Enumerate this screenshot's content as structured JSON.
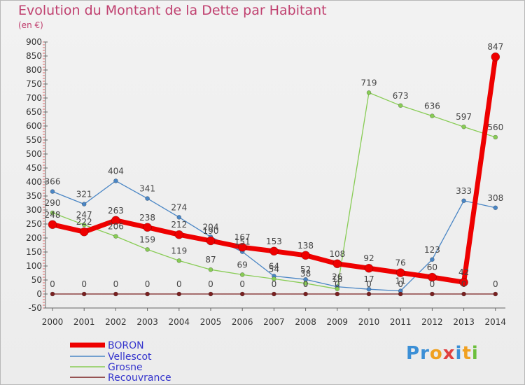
{
  "title": "Evolution du Montant de la Dette par Habitant",
  "subtitle": "(en €)",
  "logo": {
    "letters": [
      {
        "ch": "P",
        "color": "#3b8fd6"
      },
      {
        "ch": "r",
        "color": "#3b8fd6"
      },
      {
        "ch": "o",
        "color": "#f0a020"
      },
      {
        "ch": "x",
        "color": "#e04040"
      },
      {
        "ch": "i",
        "color": "#3b8fd6"
      },
      {
        "ch": "t",
        "color": "#f0a020"
      },
      {
        "ch": "i",
        "color": "#6cbf3c"
      }
    ]
  },
  "chart_data": {
    "type": "line",
    "title": "Evolution du Montant de la Dette par Habitant",
    "subtitle": "(en €)",
    "x": [
      "2000",
      "2001",
      "2002",
      "2003",
      "2004",
      "2005",
      "2006",
      "2007",
      "2008",
      "2009",
      "2010",
      "2011",
      "2012",
      "2013",
      "2014"
    ],
    "ylim": [
      -50,
      900
    ],
    "yticks": [
      -50,
      0,
      50,
      100,
      150,
      200,
      250,
      300,
      350,
      400,
      450,
      500,
      550,
      600,
      650,
      700,
      750,
      800,
      850,
      900
    ],
    "grid": false,
    "legend_position": "bottom-left",
    "series": [
      {
        "name": "BORON",
        "color": "#ee0000",
        "values": [
          248,
          222,
          263,
          238,
          212,
          190,
          167,
          153,
          138,
          108,
          92,
          76,
          60,
          42,
          847
        ],
        "labels": [
          "248",
          "222",
          "263",
          "238",
          "212",
          "190",
          "167",
          "153",
          "138",
          "108",
          "92",
          "76",
          "60",
          "42",
          "847"
        ]
      },
      {
        "name": "Vellescot",
        "color": "#4a86c5",
        "values": [
          366,
          321,
          404,
          341,
          274,
          204,
          151,
          64,
          52,
          26,
          17,
          11,
          123,
          333,
          308
        ],
        "labels": [
          "366",
          "321",
          "404",
          "341",
          "274",
          "204",
          "151",
          "64",
          "52",
          "26",
          "17",
          "11",
          "123",
          "333",
          "308"
        ]
      },
      {
        "name": "Grosne",
        "color": "#88cc55",
        "values": [
          290,
          247,
          206,
          159,
          119,
          87,
          69,
          54,
          38,
          18,
          719,
          673,
          636,
          597,
          560
        ],
        "labels": [
          "290",
          "247",
          "206",
          "159",
          "119",
          "87",
          "69",
          "54",
          "38",
          "18",
          "719",
          "673",
          "636",
          "597",
          "560"
        ]
      },
      {
        "name": "Recouvrance",
        "color": "#7a2020",
        "values": [
          0,
          0,
          0,
          0,
          0,
          0,
          0,
          0,
          0,
          0,
          0,
          0,
          0,
          0,
          0
        ],
        "labels": [
          "0",
          "0",
          "0",
          "0",
          "0",
          "0",
          "0",
          "0",
          "0",
          "0",
          "0",
          "0",
          "0",
          "0",
          "0"
        ]
      }
    ]
  }
}
